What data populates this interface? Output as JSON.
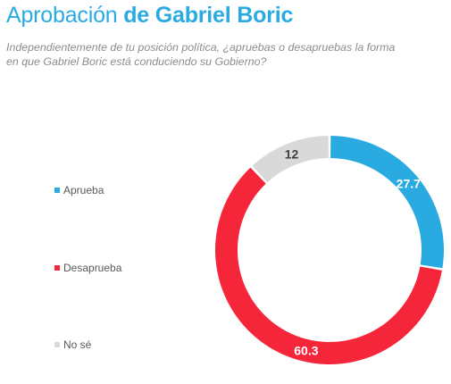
{
  "header": {
    "title_regular": "Aprobación",
    "title_bold": "de Gabriel Boric",
    "subtitle": "Independientemente de tu posición política, ¿apruebas o desapruebas la forma en que Gabriel Boric está conduciendo su Gobierno?"
  },
  "chart_data": {
    "type": "pie",
    "variant": "donut",
    "title": "Aprobación de Gabriel Boric",
    "categories": [
      "Aprueba",
      "Desaprueba",
      "No sé"
    ],
    "values": [
      27.7,
      60.3,
      12
    ],
    "value_labels": [
      "27.7",
      "60.3",
      "12"
    ],
    "colors": [
      "#29abe2",
      "#f5253a",
      "#d9d9d9"
    ],
    "label_colors": [
      "#ffffff",
      "#ffffff",
      "#404040"
    ],
    "legend_placement": "left",
    "start": "top",
    "direction": "clockwise"
  },
  "legend": {
    "items": [
      {
        "label": "Aprueba",
        "color": "#29abe2"
      },
      {
        "label": "Desaprueba",
        "color": "#f5253a"
      },
      {
        "label": "No sé",
        "color": "#d9d9d9"
      }
    ]
  }
}
